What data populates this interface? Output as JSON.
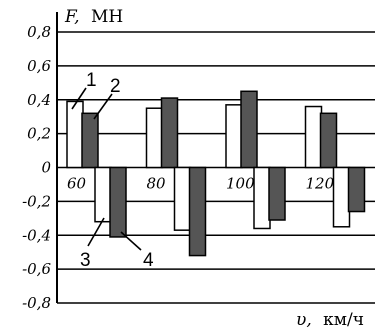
{
  "chart_data": {
    "type": "bar",
    "title": "",
    "ylabel_symbol": "F,",
    "ylabel_unit": "МН",
    "xlabel_symbol": "υ,",
    "xlabel_unit": "км/ч",
    "ylim": [
      -0.8,
      0.8
    ],
    "yticks": [
      "0,8",
      "0,6",
      "0,4",
      "0,2",
      "0",
      "-0,2",
      "-0,4",
      "-0,6",
      "-0,8"
    ],
    "ytick_values": [
      0.8,
      0.6,
      0.4,
      0.2,
      0,
      -0.2,
      -0.4,
      -0.6,
      -0.8
    ],
    "grid": true,
    "categories": [
      "60",
      "80",
      "100",
      "120"
    ],
    "series": [
      {
        "values": [
          0.39,
          0.35,
          0.37,
          0.36
        ]
      },
      {
        "values": [
          0.32,
          0.41,
          0.45,
          0.32
        ]
      },
      {
        "values": [
          -0.32,
          -0.37,
          -0.36,
          -0.35
        ]
      },
      {
        "values": [
          -0.41,
          -0.52,
          -0.31,
          -0.26
        ]
      }
    ],
    "series_colors": [
      "#ffffff",
      "#555555",
      "#ffffff",
      "#555555"
    ],
    "annotations": [
      "1",
      "2",
      "3",
      "4"
    ]
  }
}
